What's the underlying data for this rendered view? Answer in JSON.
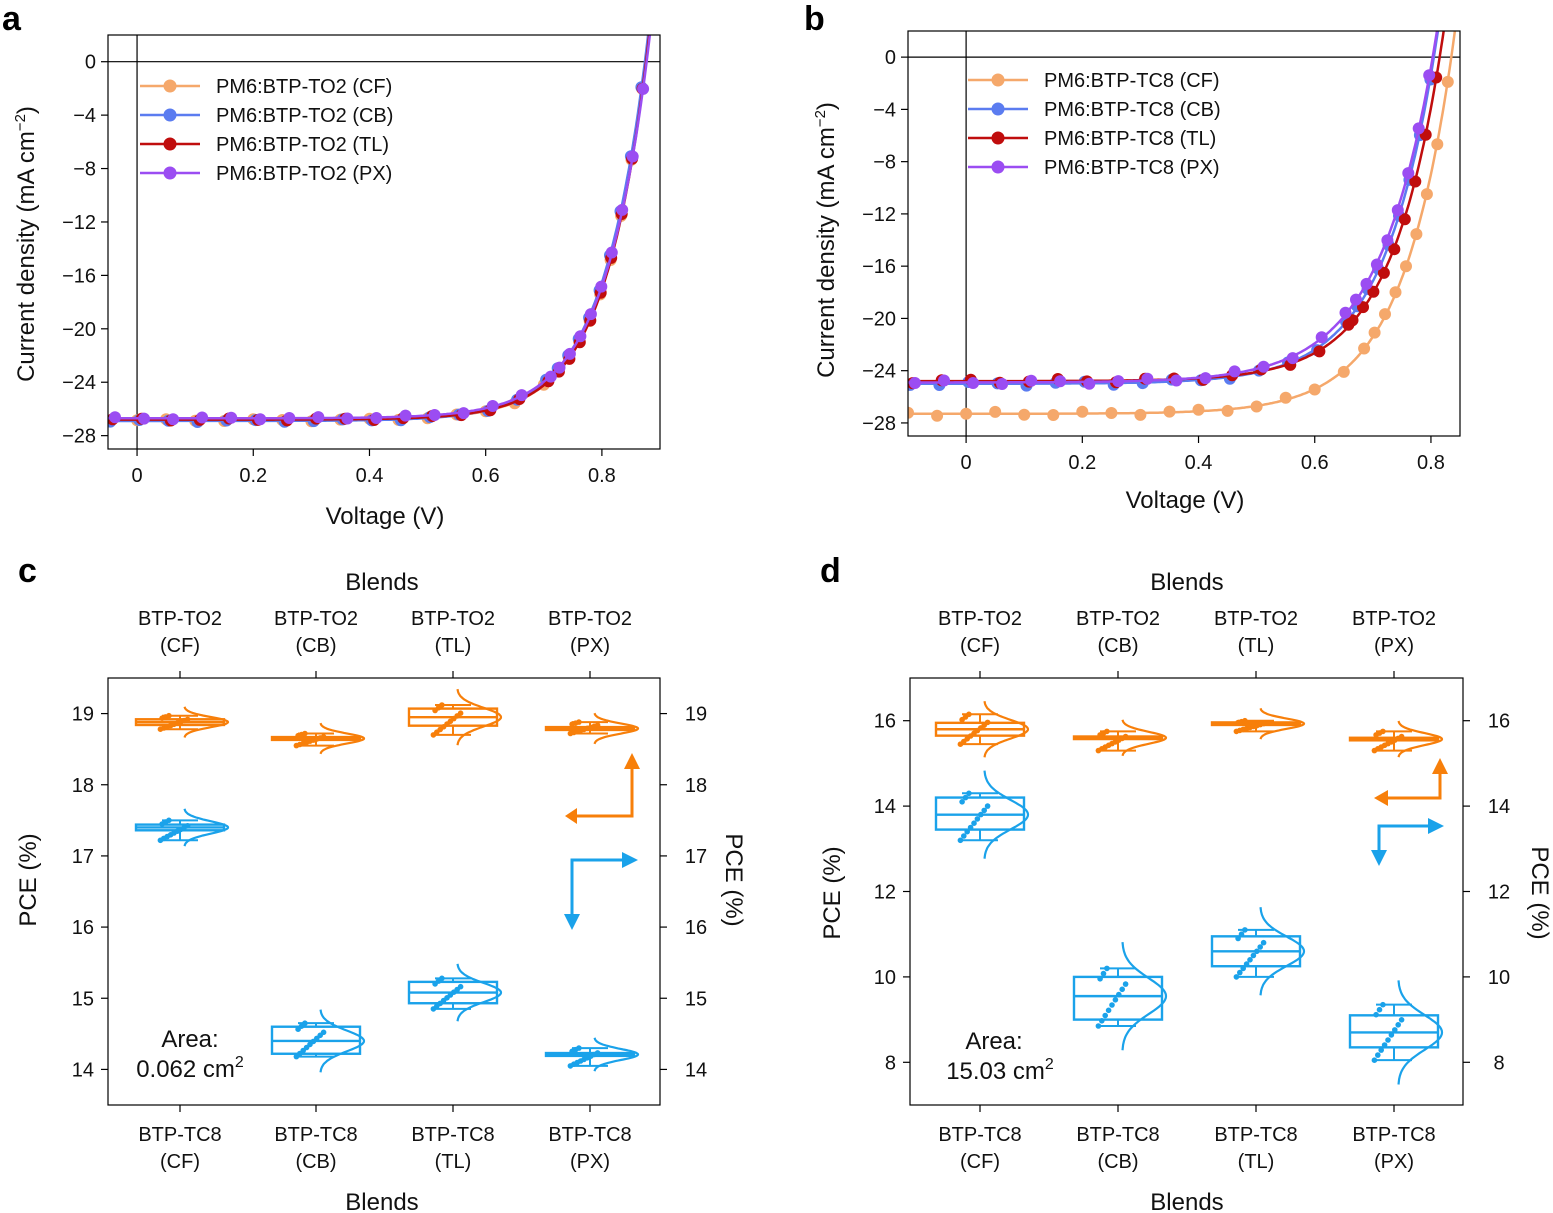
{
  "colors": {
    "CF": "#f5a86b",
    "CB": "#5b7cf0",
    "TL": "#c00d0d",
    "PX": "#9b4df2",
    "orange": "#f77f0a",
    "blue": "#1aa2ea"
  },
  "chart_data": [
    {
      "panel": "a",
      "type": "line",
      "xlabel": "Voltage (V)",
      "ylabel": "Current density (mA cm",
      "ylabel_sup": "−2",
      "ylabel_end": ")",
      "xlim": [
        -0.05,
        0.9
      ],
      "ylim": [
        -29.0,
        2.0
      ],
      "xticks": [
        0,
        0.2,
        0.4,
        0.6,
        0.8
      ],
      "xtick_labels": [
        "0",
        "0.2",
        "0.4",
        "0.6",
        "0.8"
      ],
      "yticks": [
        0,
        -4,
        -8,
        -12,
        -16,
        -20,
        -24,
        -28
      ],
      "ytick_labels": [
        "0",
        "−4",
        "−8",
        "−12",
        "−16",
        "−20",
        "−24",
        "−28"
      ],
      "legend_position": "top-left",
      "series": [
        {
          "key": "CF",
          "name": "PM6:BTP-TO2 (CF)",
          "jsc": -26.85,
          "voc": 0.875,
          "n": 2.9
        },
        {
          "key": "CB",
          "name": "PM6:BTP-TO2 (CB)",
          "jsc": -26.9,
          "voc": 0.874,
          "n": 3.0
        },
        {
          "key": "TL",
          "name": "PM6:BTP-TO2 (TL)",
          "jsc": -26.8,
          "voc": 0.876,
          "n": 2.9
        },
        {
          "key": "PX",
          "name": "PM6:BTP-TO2 (PX)",
          "jsc": -26.7,
          "voc": 0.877,
          "n": 3.0
        }
      ]
    },
    {
      "panel": "b",
      "type": "line",
      "xlabel": "Voltage (V)",
      "ylabel": "Current density (mA cm",
      "ylabel_sup": "−2",
      "ylabel_end": ")",
      "xlim": [
        -0.1,
        0.85
      ],
      "ylim": [
        -29.0,
        2.0
      ],
      "xticks": [
        0,
        0.2,
        0.4,
        0.6,
        0.8
      ],
      "xtick_labels": [
        "0",
        "0.2",
        "0.4",
        "0.6",
        "0.8"
      ],
      "yticks": [
        0,
        -4,
        -8,
        -12,
        -16,
        -20,
        -24,
        -28
      ],
      "ytick_labels": [
        "0",
        "−4",
        "−8",
        "−12",
        "−16",
        "−20",
        "−24",
        "−28"
      ],
      "legend_position": "top-left",
      "series": [
        {
          "key": "CF",
          "name": "PM6:BTP-TC8 (CF)",
          "jsc": -27.3,
          "voc": 0.835,
          "n": 3.4
        },
        {
          "key": "CB",
          "name": "PM6:BTP-TC8 (CB)",
          "jsc": -25.0,
          "voc": 0.805,
          "n": 3.5
        },
        {
          "key": "TL",
          "name": "PM6:BTP-TC8 (TL)",
          "jsc": -24.8,
          "voc": 0.815,
          "n": 3.4
        },
        {
          "key": "PX",
          "name": "PM6:BTP-TC8 (PX)",
          "jsc": -24.9,
          "voc": 0.803,
          "n": 3.7
        }
      ]
    },
    {
      "panel": "c",
      "type": "box",
      "top_xlabel": "Blends",
      "bottom_xlabel": "Blends",
      "left_ylabel": "PCE (%)",
      "right_ylabel": "PCE (%)",
      "ylim": [
        13.5,
        19.5
      ],
      "yticks": [
        14,
        15,
        16,
        17,
        18,
        19
      ],
      "ytick_labels": [
        "14",
        "15",
        "16",
        "17",
        "18",
        "19"
      ],
      "top_categories": [
        [
          "BTP-TO2",
          "(CF)"
        ],
        [
          "BTP-TO2",
          "(CB)"
        ],
        [
          "BTP-TO2",
          "(TL)"
        ],
        [
          "BTP-TO2",
          "(PX)"
        ]
      ],
      "bottom_categories": [
        [
          "BTP-TC8",
          "(CF)"
        ],
        [
          "BTP-TC8",
          "(CB)"
        ],
        [
          "BTP-TC8",
          "(TL)"
        ],
        [
          "BTP-TC8",
          "(PX)"
        ]
      ],
      "series": [
        {
          "name": "BTP-TO2",
          "color_key": "orange",
          "axis": "right",
          "boxes": [
            {
              "median": 18.88,
              "q1": 18.84,
              "q3": 18.92,
              "wlo": 18.78,
              "whi": 18.97
            },
            {
              "median": 18.65,
              "q1": 18.63,
              "q3": 18.67,
              "wlo": 18.55,
              "whi": 18.72
            },
            {
              "median": 18.95,
              "q1": 18.83,
              "q3": 19.07,
              "wlo": 18.7,
              "whi": 19.12
            },
            {
              "median": 18.79,
              "q1": 18.77,
              "q3": 18.81,
              "wlo": 18.72,
              "whi": 18.88
            }
          ]
        },
        {
          "name": "BTP-TC8",
          "color_key": "blue",
          "axis": "left",
          "boxes": [
            {
              "median": 17.4,
              "q1": 17.36,
              "q3": 17.44,
              "wlo": 17.22,
              "whi": 17.5
            },
            {
              "median": 14.4,
              "q1": 14.22,
              "q3": 14.6,
              "wlo": 14.18,
              "whi": 14.65
            },
            {
              "median": 15.08,
              "q1": 14.93,
              "q3": 15.23,
              "wlo": 14.85,
              "whi": 15.28
            },
            {
              "median": 14.21,
              "q1": 14.19,
              "q3": 14.23,
              "wlo": 14.05,
              "whi": 14.3
            }
          ]
        }
      ],
      "annotation_line1": "Area:",
      "annotation_line2": "0.062 cm",
      "annotation_sup": "2"
    },
    {
      "panel": "d",
      "type": "box",
      "top_xlabel": "Blends",
      "bottom_xlabel": "Blends",
      "left_ylabel": "PCE (%)",
      "right_ylabel": "PCE (%)",
      "ylim": [
        7.0,
        17.0
      ],
      "yticks": [
        8,
        10,
        12,
        14,
        16
      ],
      "ytick_labels": [
        "8",
        "10",
        "12",
        "14",
        "16"
      ],
      "top_categories": [
        [
          "BTP-TO2",
          "(CF)"
        ],
        [
          "BTP-TO2",
          "(CB)"
        ],
        [
          "BTP-TO2",
          "(TL)"
        ],
        [
          "BTP-TO2",
          "(PX)"
        ]
      ],
      "bottom_categories": [
        [
          "BTP-TC8",
          "(CF)"
        ],
        [
          "BTP-TC8",
          "(CB)"
        ],
        [
          "BTP-TC8",
          "(TL)"
        ],
        [
          "BTP-TC8",
          "(PX)"
        ]
      ],
      "series": [
        {
          "name": "BTP-TO2",
          "color_key": "orange",
          "axis": "right",
          "boxes": [
            {
              "median": 15.8,
              "q1": 15.65,
              "q3": 15.95,
              "wlo": 15.45,
              "whi": 16.15
            },
            {
              "median": 15.6,
              "q1": 15.57,
              "q3": 15.63,
              "wlo": 15.3,
              "whi": 15.75
            },
            {
              "median": 15.93,
              "q1": 15.9,
              "q3": 15.96,
              "wlo": 15.75,
              "whi": 16.0
            },
            {
              "median": 15.57,
              "q1": 15.54,
              "q3": 15.6,
              "wlo": 15.3,
              "whi": 15.75
            }
          ]
        },
        {
          "name": "BTP-TC8",
          "color_key": "blue",
          "axis": "left",
          "boxes": [
            {
              "median": 13.8,
              "q1": 13.45,
              "q3": 14.2,
              "wlo": 13.2,
              "whi": 14.3
            },
            {
              "median": 9.55,
              "q1": 9.0,
              "q3": 10.0,
              "wlo": 8.85,
              "whi": 10.2
            },
            {
              "median": 10.6,
              "q1": 10.25,
              "q3": 10.95,
              "wlo": 10.0,
              "whi": 11.1
            },
            {
              "median": 8.7,
              "q1": 8.35,
              "q3": 9.1,
              "wlo": 8.05,
              "whi": 9.35
            }
          ]
        }
      ],
      "annotation_line1": "Area:",
      "annotation_line2": "15.03 cm",
      "annotation_sup": "2"
    }
  ]
}
